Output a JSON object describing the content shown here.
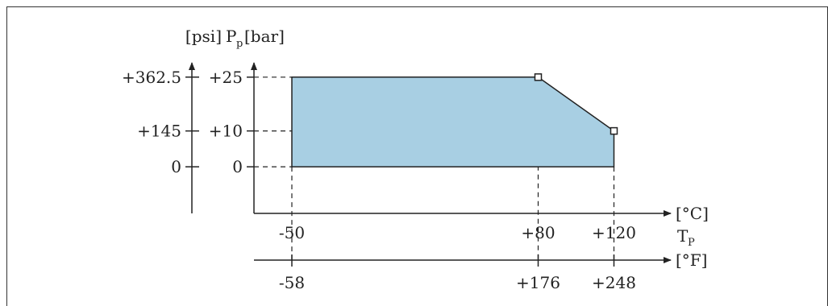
{
  "chart_data": {
    "type": "area",
    "psi_unit": "[psi]",
    "pressure_symbol": "P",
    "pressure_subscript": "p",
    "bar_unit": "[bar]",
    "celsius_unit": "[°C]",
    "temp_symbol": "T",
    "temp_subscript": "P",
    "fahrenheit_unit": "[°F]",
    "ylim_bar": [
      -13,
      29
    ],
    "xlim_celsius": [
      -70,
      150
    ],
    "bar_ticks": [
      {
        "value": 25,
        "label": "+25"
      },
      {
        "value": 10,
        "label": "+10"
      },
      {
        "value": 0,
        "label": "0"
      }
    ],
    "psi_ticks": [
      {
        "value": 25,
        "label": "+362.5"
      },
      {
        "value": 10,
        "label": "+145"
      },
      {
        "value": 0,
        "label": "0"
      }
    ],
    "celsius_ticks": [
      {
        "value": -50,
        "label": "-50"
      },
      {
        "value": 80,
        "label": "+80"
      },
      {
        "value": 120,
        "label": "+120"
      }
    ],
    "fahrenheit_ticks": [
      {
        "value": -50,
        "label": "-58"
      },
      {
        "value": 80,
        "label": "+176"
      },
      {
        "value": 120,
        "label": "+248"
      }
    ],
    "region": [
      [
        -50,
        0
      ],
      [
        -50,
        25
      ],
      [
        80,
        25
      ],
      [
        120,
        10
      ],
      [
        120,
        0
      ]
    ],
    "markers": [
      [
        80,
        25
      ],
      [
        120,
        10
      ]
    ],
    "fill_color": "#a8cfe3",
    "line_color": "#222222"
  }
}
